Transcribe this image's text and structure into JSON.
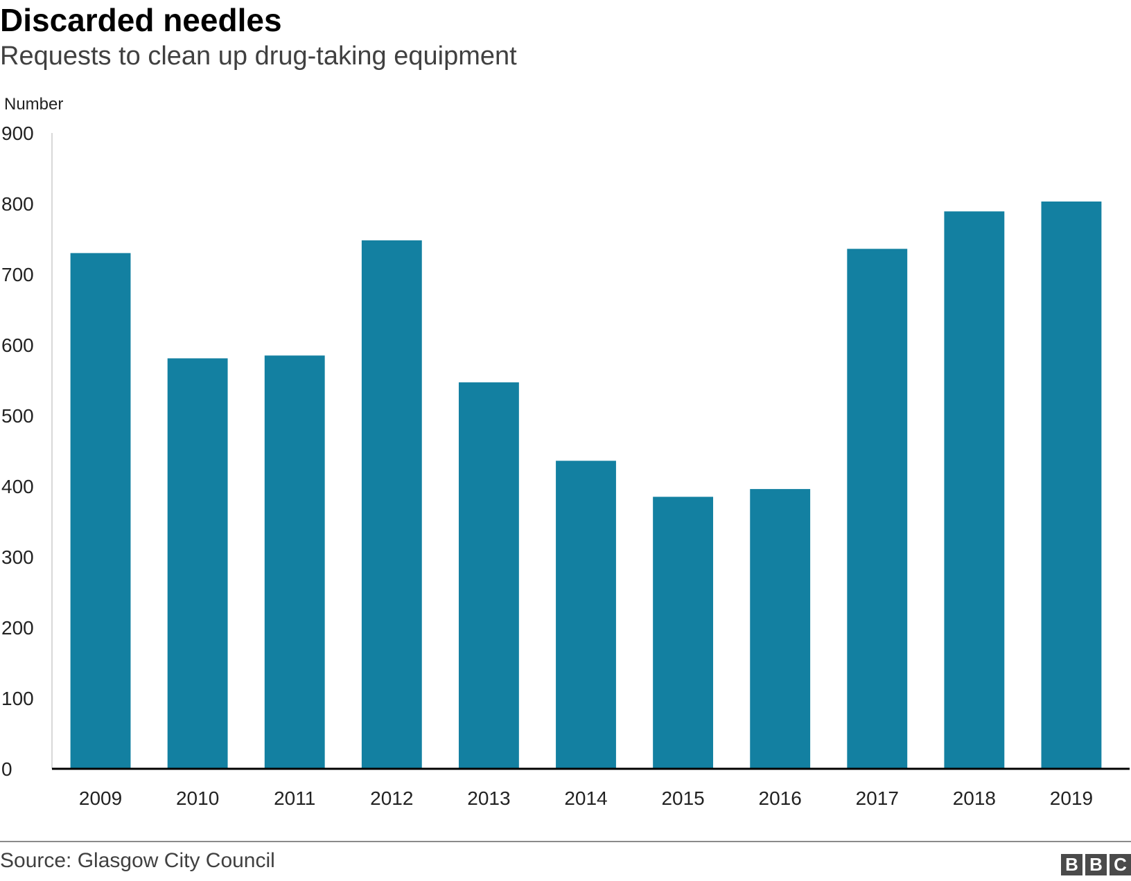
{
  "chart_data": {
    "type": "bar",
    "title": "Discarded needles",
    "subtitle": "Requests to clean up drug-taking equipment",
    "ylabel": "Number",
    "xlabel": "",
    "ylim": [
      0,
      900
    ],
    "yticks": [
      "0",
      "100",
      "200",
      "300",
      "400",
      "500",
      "600",
      "700",
      "800",
      "900"
    ],
    "categories": [
      "2009",
      "2010",
      "2011",
      "2012",
      "2013",
      "2014",
      "2015",
      "2016",
      "2017",
      "2018",
      "2019"
    ],
    "values": [
      730,
      581,
      585,
      748,
      547,
      436,
      385,
      396,
      736,
      789,
      803
    ],
    "grid": false,
    "legend": "none",
    "bar_color": "#1380A1"
  },
  "source": "Source: Glasgow City Council",
  "logo": {
    "letters": [
      "B",
      "B",
      "C"
    ]
  }
}
